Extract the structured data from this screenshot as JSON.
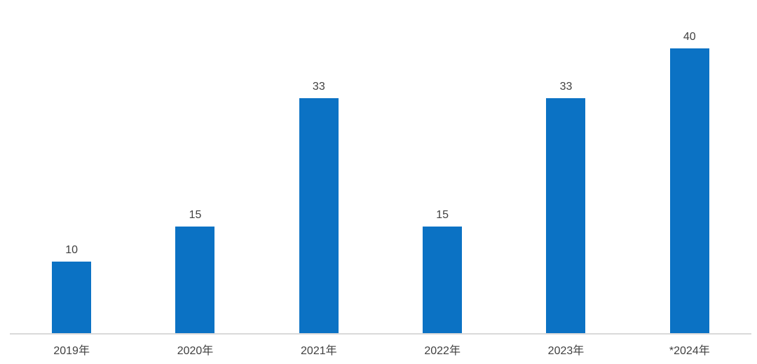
{
  "chart_data": {
    "type": "bar",
    "title": "",
    "xlabel": "",
    "ylabel": "",
    "categories": [
      "2019年",
      "2020年",
      "2021年",
      "2022年",
      "2023年",
      "*2024年"
    ],
    "values": [
      10,
      15,
      33,
      15,
      33,
      40
    ],
    "data_labels_shown": true,
    "ylim": [
      0,
      40
    ],
    "grid": false,
    "legend_position": "none",
    "colors": {
      "bar": "#0B72C4",
      "label": "#404040",
      "axis_line": "#D9D9D9",
      "background": "#FFFFFF"
    }
  }
}
